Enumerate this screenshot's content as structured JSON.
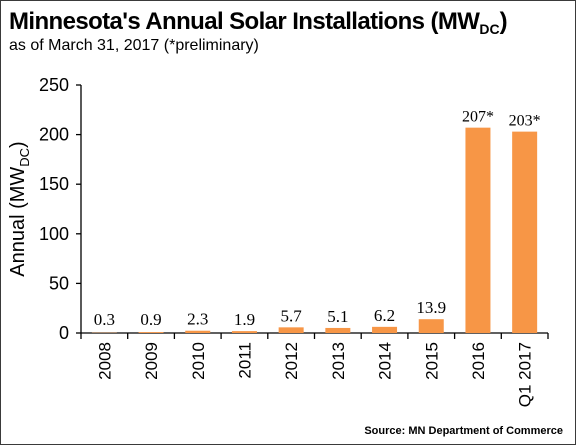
{
  "title_main": "Minnesota's Annual Solar Installations (MW",
  "title_sub": "DC",
  "title_close": ")",
  "subtitle": "as of March 31, 2017 (*preliminary)",
  "source": "Source: MN Department of Commerce",
  "bar_color": "#F79646",
  "chart_data": {
    "type": "bar",
    "title": "Minnesota's Annual Solar Installations (MWDC)",
    "subtitle": "as of March 31, 2017 (*preliminary)",
    "ylabel": "Annual (MWDC)",
    "ylabel_main": "Annual (MW",
    "ylabel_sub": "DC",
    "ylabel_close": ")",
    "xlabel": "",
    "ylim": [
      0,
      250
    ],
    "yticks": [
      0,
      50,
      100,
      150,
      200,
      250
    ],
    "grid": false,
    "categories": [
      "2008",
      "2009",
      "2010",
      "2011",
      "2012",
      "2013",
      "2014",
      "2015",
      "2016",
      "Q1 2017"
    ],
    "values": [
      0.3,
      0.9,
      2.3,
      1.9,
      5.7,
      5.1,
      6.2,
      13.9,
      207,
      203
    ],
    "labels": [
      "0.3",
      "0.9",
      "2.3",
      "1.9",
      "5.7",
      "5.1",
      "6.2",
      "13.9",
      "207*",
      "203*"
    ]
  }
}
